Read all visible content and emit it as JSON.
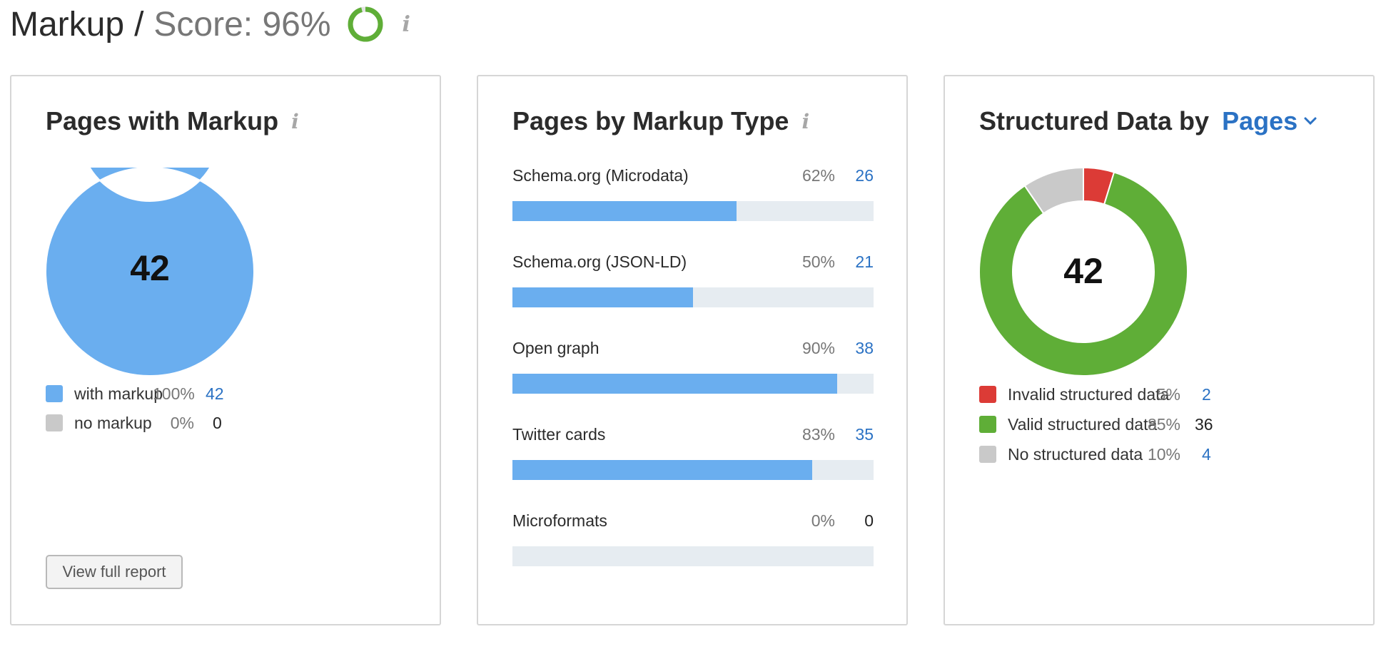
{
  "header": {
    "title": "Markup",
    "separator": "/",
    "score_text": "Score: 96%",
    "score_value": 96,
    "score_color": "#5fae37",
    "score_track_color": "#e3e3e3",
    "info_icon": "info-icon"
  },
  "cards": {
    "pages_with_markup": {
      "title": "Pages with Markup",
      "info_icon": "info-icon",
      "center_value": "42",
      "legend": [
        {
          "label": "with markup",
          "pct": "100%",
          "count": "42",
          "color": "#6aaeef"
        },
        {
          "label": "no markup",
          "pct": "0%",
          "count": "0",
          "color": "#c9c9c9"
        }
      ],
      "button_label": "View full report"
    },
    "pages_by_type": {
      "title": "Pages by Markup Type",
      "info_icon": "info-icon",
      "bars": [
        {
          "label": "Schema.org (Microdata)",
          "pct": "62%",
          "count": "26",
          "value": 62
        },
        {
          "label": "Schema.org (JSON-LD)",
          "pct": "50%",
          "count": "21",
          "value": 50
        },
        {
          "label": "Open graph",
          "pct": "90%",
          "count": "38",
          "value": 90
        },
        {
          "label": "Twitter cards",
          "pct": "83%",
          "count": "35",
          "value": 83
        },
        {
          "label": "Microformats",
          "pct": "0%",
          "count": "0",
          "value": 0
        }
      ],
      "bar_color": "#6aaeef",
      "track_color": "#e6ecf1"
    },
    "structured_data": {
      "title": "Structured Data by",
      "selector_value": "Pages",
      "selector_icon": "chevron-down-icon",
      "center_value": "42",
      "legend": [
        {
          "label": "Invalid structured data",
          "pct": "5%",
          "count": "2",
          "color": "#dc3b36"
        },
        {
          "label": "Valid structured data",
          "pct": "85%",
          "count": "36",
          "color": "#5fae37"
        },
        {
          "label": "No structured data",
          "pct": "10%",
          "count": "4",
          "color": "#c9c9c9"
        }
      ]
    }
  },
  "chart_data": [
    {
      "type": "pie",
      "title": "Pages with Markup",
      "categories": [
        "with markup",
        "no markup"
      ],
      "values": [
        42,
        0
      ],
      "percentages": [
        100,
        0
      ],
      "center_label": "42"
    },
    {
      "type": "bar",
      "title": "Pages by Markup Type",
      "categories": [
        "Schema.org (Microdata)",
        "Schema.org (JSON-LD)",
        "Open graph",
        "Twitter cards",
        "Microformats"
      ],
      "values": [
        26,
        21,
        38,
        35,
        0
      ],
      "percentages": [
        62,
        50,
        90,
        83,
        0
      ],
      "orientation": "horizontal"
    },
    {
      "type": "pie",
      "title": "Structured Data by Pages",
      "categories": [
        "Invalid structured data",
        "Valid structured data",
        "No structured data"
      ],
      "values": [
        2,
        36,
        4
      ],
      "percentages": [
        5,
        85,
        10
      ],
      "center_label": "42"
    }
  ]
}
